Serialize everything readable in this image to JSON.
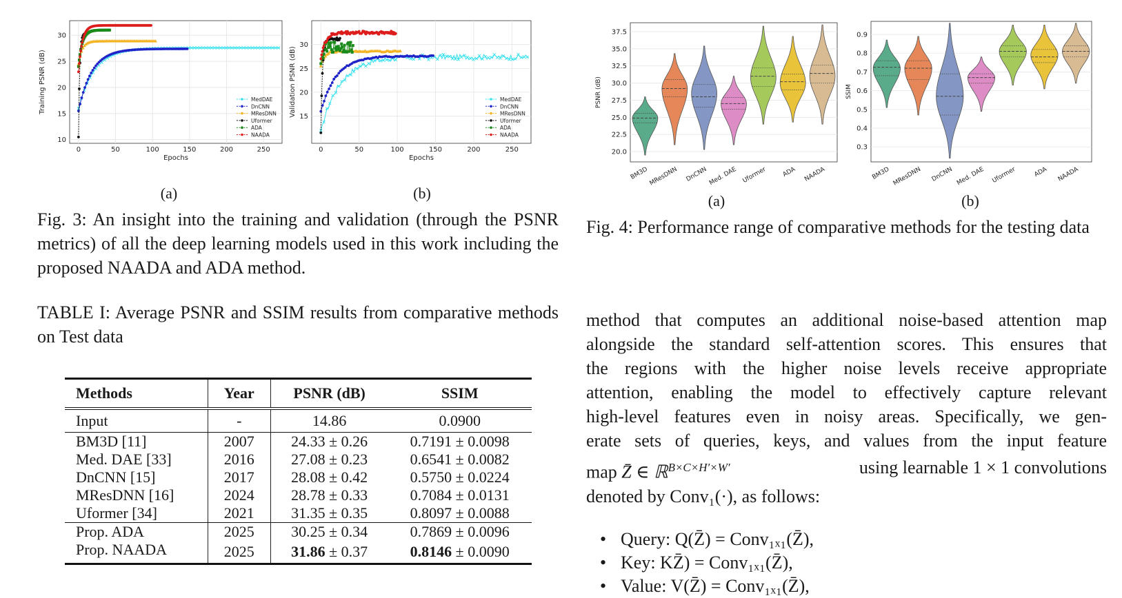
{
  "fig3": {
    "caption": "Fig. 3: An insight into the training and validation (through the PSNR metrics) of all the deep learning models used in this work including the proposed NAADA and ADA method.",
    "label_a": "(a)",
    "label_b": "(b)"
  },
  "fig4": {
    "caption": "Fig. 4: Performance range of comparative methods for the testing data",
    "label_a": "(a)",
    "label_b": "(b)"
  },
  "table": {
    "caption": "TABLE I: Average PSNR and SSIM results from comparative methods on Test data",
    "headers": [
      "Methods",
      "Year",
      "PSNR (dB)",
      "SSIM"
    ],
    "input_row": [
      "Input",
      "-",
      "14.86",
      "0.0900"
    ],
    "rows": [
      [
        "BM3D [11]",
        "2007",
        "24.33 ± 0.26",
        "0.7191 ± 0.0098"
      ],
      [
        "Med. DAE [33]",
        "2016",
        "27.08 ± 0.23",
        "0.6541 ± 0.0082"
      ],
      [
        "DnCNN [15]",
        "2017",
        "28.08 ± 0.42",
        "0.5750 ± 0.0224"
      ],
      [
        "MResDNN [16]",
        "2024",
        "28.78 ± 0.33",
        "0.7084 ± 0.0131"
      ],
      [
        "Uformer [34]",
        "2021",
        "31.35 ± 0.35",
        "0.8097 ± 0.0088"
      ]
    ],
    "prop_rows": [
      {
        "method": "Prop. ADA",
        "year": "2025",
        "psnr_bold": "",
        "psnr_rest": "30.25 ± 0.34",
        "ssim_bold": "",
        "ssim_rest": "0.7869 ± 0.0096"
      },
      {
        "method": "Prop. NAADA",
        "year": "2025",
        "psnr_bold": "31.86",
        "psnr_rest": " ± 0.37",
        "ssim_bold": "0.8146",
        "ssim_rest": " ± 0.0090"
      }
    ]
  },
  "body": {
    "lines": [
      "method that computes an additional noise-based attention map",
      "alongside the standard self-attention scores. This ensures that",
      "the regions with the higher noise levels receive appropriate",
      "attention, enabling the model to effectively capture relevant",
      "high-level features even in noisy areas. Specifically, we gen-",
      "erate sets of queries, keys, and values from the input feature"
    ],
    "line7_a": "map ",
    "line7_math": "Z̄ ∈ ℝ",
    "line7_sup": "B×C×H′×W′",
    "line7_b": " using learnable 1 × 1 convolutions",
    "line8": "denoted by Conv₁(·), as follows:",
    "bullets": [
      "Query: Q(Z̄) = Conv₁ₓ₁(Z̄),",
      "Key: KZ̄) = Conv₁ₓ₁(Z̄),",
      "Value: V(Z̄) = Conv₁ₓ₁(Z̄),"
    ]
  },
  "chart_data": [
    {
      "type": "line",
      "id": "fig3a",
      "xlabel": "Epochs",
      "ylabel": "Training PSNR (dB)",
      "xlim": [
        -12,
        275
      ],
      "ylim": [
        9.3,
        32.8
      ],
      "xticks": [
        0,
        50,
        100,
        150,
        200,
        250
      ],
      "yticks": [
        10,
        15,
        20,
        25,
        30
      ],
      "legend_position": "bottom-right",
      "grid": true,
      "series": [
        {
          "name": "MedDAE",
          "color": "#33e0f0",
          "marker": "x",
          "end": 272,
          "final": 27.6,
          "start": 16.0,
          "k": 22
        },
        {
          "name": "DnCNN",
          "color": "#1f24c8",
          "marker": "o",
          "end": 148,
          "final": 27.4,
          "start": 15.5,
          "k": 18
        },
        {
          "name": "MResDNN",
          "color": "#f4b323",
          "marker": "^",
          "end": 105,
          "final": 28.9,
          "start": 24.5,
          "k": 5
        },
        {
          "name": "Uformer",
          "color": "#111111",
          "marker": "o",
          "end": 8,
          "final": 30.4,
          "start": 10.5,
          "k": 1.6
        },
        {
          "name": "ADA",
          "color": "#1a8a1a",
          "marker": "s",
          "end": 42,
          "final": 31.0,
          "start": 24.0,
          "k": 5
        },
        {
          "name": "NAADA",
          "color": "#dd1c1c",
          "marker": "o",
          "end": 98,
          "final": 31.9,
          "start": 23.0,
          "k": 5
        }
      ]
    },
    {
      "type": "line",
      "id": "fig3b",
      "xlabel": "Epochs",
      "ylabel": "Validation PSNR (dB)",
      "xlim": [
        -12,
        275
      ],
      "ylim": [
        9.3,
        35.0
      ],
      "xticks": [
        0,
        50,
        100,
        150,
        200,
        250
      ],
      "yticks": [
        15,
        20,
        25,
        30
      ],
      "legend_position": "bottom-right",
      "grid": true,
      "series": [
        {
          "name": "MedDAE",
          "color": "#33e0f0",
          "marker": "x",
          "end": 272,
          "final": 27.4,
          "start": 12.0,
          "k": 25,
          "noise": 0.55
        },
        {
          "name": "DnCNN",
          "color": "#1f24c8",
          "marker": "o",
          "end": 148,
          "final": 27.6,
          "start": 16.0,
          "k": 20,
          "noise": 0.15
        },
        {
          "name": "MResDNN",
          "color": "#f4b323",
          "marker": "^",
          "end": 105,
          "final": 28.6,
          "start": 25.5,
          "k": 5,
          "noise": 0.15
        },
        {
          "name": "Uformer",
          "color": "#111111",
          "marker": "o",
          "end": 25,
          "final": 31.2,
          "start": 11.5,
          "k": 2,
          "noise": 0.3
        },
        {
          "name": "ADA",
          "color": "#1a8a1a",
          "marker": "s",
          "end": 42,
          "final": 29.5,
          "start": 26.0,
          "k": 3,
          "noise": 1.2
        },
        {
          "name": "NAADA",
          "color": "#dd1c1c",
          "marker": "o",
          "end": 98,
          "final": 32.5,
          "start": 27.0,
          "k": 6,
          "noise": 0.35
        }
      ]
    },
    {
      "type": "violin",
      "id": "fig4a",
      "ylabel": "PSNR (dB)",
      "ylim": [
        18.5,
        38.8
      ],
      "yticks": [
        "20.0",
        "22.5",
        "25.0",
        "27.5",
        "30.0",
        "32.5",
        "35.0",
        "37.5"
      ],
      "grid": true,
      "categories": [
        "BM3D",
        "MResDNN",
        "DnCNN",
        "Med. DAE",
        "Uformer",
        "ADA",
        "NAADA"
      ],
      "colors": [
        "#5aab8a",
        "#e58758",
        "#8497c4",
        "#dd8cc6",
        "#a6c95c",
        "#e9c43a",
        "#d8bb93"
      ],
      "min": [
        19.5,
        21.0,
        20.3,
        21.0,
        24.0,
        24.3,
        24.0
      ],
      "max": [
        28.0,
        34.3,
        35.4,
        31.0,
        38.3,
        36.8,
        38.5
      ],
      "q1": [
        24.2,
        28.0,
        26.5,
        26.2,
        29.5,
        29.0,
        30.0
      ],
      "median": [
        24.9,
        29.2,
        28.0,
        27.0,
        31.0,
        30.2,
        31.4
      ],
      "q3": [
        25.6,
        30.5,
        29.8,
        27.9,
        32.2,
        31.3,
        32.6
      ],
      "mode": [
        24.9,
        29.2,
        28.5,
        27.0,
        30.8,
        30.0,
        31.0
      ]
    },
    {
      "type": "violin",
      "id": "fig4b",
      "ylabel": "SSIM",
      "ylim": [
        0.22,
        0.97
      ],
      "yticks": [
        "0.3",
        "0.4",
        "0.5",
        "0.6",
        "0.7",
        "0.8",
        "0.9"
      ],
      "grid": true,
      "categories": [
        "BM3D",
        "MResDNN",
        "DnCNN",
        "Med. DAE",
        "Uformer",
        "ADA",
        "NAADA"
      ],
      "colors": [
        "#5aab8a",
        "#e58758",
        "#8497c4",
        "#dd8cc6",
        "#a6c95c",
        "#e9c43a",
        "#d8bb93"
      ],
      "min": [
        0.51,
        0.47,
        0.24,
        0.49,
        0.63,
        0.61,
        0.64
      ],
      "max": [
        0.87,
        0.89,
        0.96,
        0.78,
        0.95,
        0.95,
        0.96
      ],
      "q1": [
        0.68,
        0.66,
        0.47,
        0.64,
        0.78,
        0.75,
        0.78
      ],
      "median": [
        0.725,
        0.72,
        0.57,
        0.67,
        0.81,
        0.78,
        0.81
      ],
      "q3": [
        0.76,
        0.76,
        0.69,
        0.69,
        0.84,
        0.82,
        0.84
      ],
      "mode": [
        0.72,
        0.72,
        0.57,
        0.67,
        0.81,
        0.79,
        0.81
      ]
    }
  ]
}
